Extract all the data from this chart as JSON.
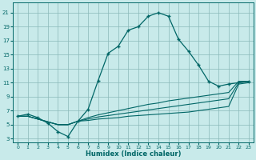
{
  "xlabel": "Humidex (Indice chaleur)",
  "bg_color": "#c8eaea",
  "grid_color": "#8ab8b8",
  "line_color": "#006666",
  "xlim": [
    -0.5,
    23.5
  ],
  "ylim": [
    2.5,
    22.5
  ],
  "xticks": [
    0,
    1,
    2,
    3,
    4,
    5,
    6,
    7,
    8,
    9,
    10,
    11,
    12,
    13,
    14,
    15,
    16,
    17,
    18,
    19,
    20,
    21,
    22,
    23
  ],
  "yticks": [
    3,
    5,
    7,
    9,
    11,
    13,
    15,
    17,
    19,
    21
  ],
  "main_x": [
    0,
    1,
    2,
    3,
    4,
    5,
    6,
    7,
    8,
    9,
    10,
    11,
    12,
    13,
    14,
    15,
    16,
    17,
    18,
    19,
    20,
    21,
    22,
    23
  ],
  "main_y": [
    6.2,
    6.5,
    6.0,
    5.2,
    4.0,
    3.3,
    5.5,
    7.2,
    11.3,
    15.2,
    16.2,
    18.5,
    19.0,
    20.5,
    21.0,
    20.5,
    17.2,
    15.5,
    13.5,
    11.2,
    10.5,
    10.8,
    11.0,
    11.2
  ],
  "line2_x": [
    0,
    1,
    2,
    3,
    4,
    5,
    6,
    7,
    8,
    9,
    10,
    11,
    12,
    13,
    14,
    15,
    16,
    17,
    18,
    19,
    20,
    21,
    22,
    23
  ],
  "line2_y": [
    6.2,
    6.2,
    5.8,
    5.4,
    5.0,
    5.0,
    5.5,
    6.0,
    6.4,
    6.7,
    7.0,
    7.3,
    7.6,
    7.9,
    8.1,
    8.4,
    8.6,
    8.8,
    9.0,
    9.2,
    9.4,
    9.6,
    11.2,
    11.2
  ],
  "line3_x": [
    0,
    1,
    2,
    3,
    4,
    5,
    6,
    7,
    8,
    9,
    10,
    11,
    12,
    13,
    14,
    15,
    16,
    17,
    18,
    19,
    20,
    21,
    22,
    23
  ],
  "line3_y": [
    6.2,
    6.2,
    5.8,
    5.4,
    5.0,
    5.0,
    5.5,
    5.8,
    6.1,
    6.3,
    6.5,
    6.7,
    6.9,
    7.1,
    7.3,
    7.5,
    7.7,
    7.9,
    8.1,
    8.3,
    8.5,
    8.7,
    11.0,
    11.2
  ],
  "line4_x": [
    0,
    1,
    2,
    3,
    4,
    5,
    6,
    7,
    8,
    9,
    10,
    11,
    12,
    13,
    14,
    15,
    16,
    17,
    18,
    19,
    20,
    21,
    22,
    23
  ],
  "line4_y": [
    6.2,
    6.2,
    5.8,
    5.4,
    5.0,
    5.0,
    5.5,
    5.6,
    5.8,
    5.9,
    6.0,
    6.2,
    6.3,
    6.4,
    6.5,
    6.6,
    6.7,
    6.8,
    7.0,
    7.2,
    7.4,
    7.6,
    10.8,
    11.0
  ]
}
